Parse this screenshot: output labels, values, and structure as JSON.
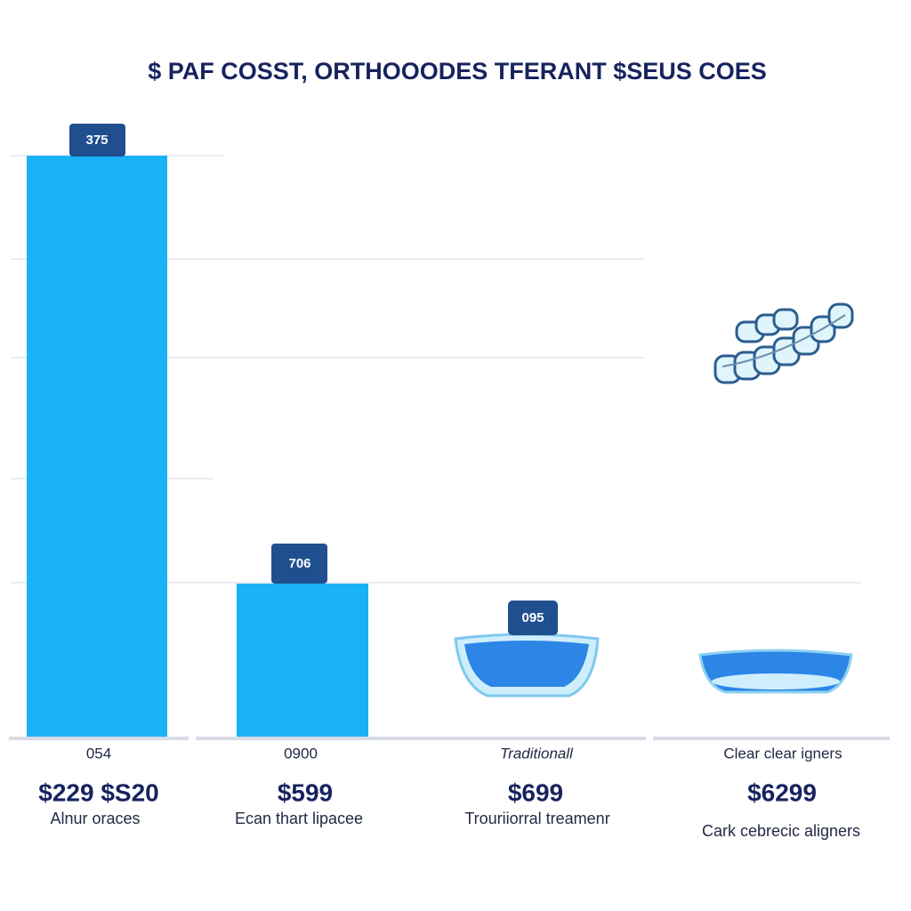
{
  "title": "$ PAF COSST, ORTHOOODES TFERANT $SEUS COES",
  "columns": [
    {
      "label": "375",
      "category": "054",
      "price": "$229 $S20",
      "caption": "Alnur oraces"
    },
    {
      "label": "706",
      "category": "0900",
      "price": "$599",
      "caption": "Ecan thart lipacee"
    },
    {
      "label": "095",
      "category": "Traditionall",
      "price": "$699",
      "caption": "Trouriiorral treamenr"
    },
    {
      "category": "Clear clear igners",
      "price": "$6299",
      "caption": "Cark cebrecic aligners"
    }
  ]
}
